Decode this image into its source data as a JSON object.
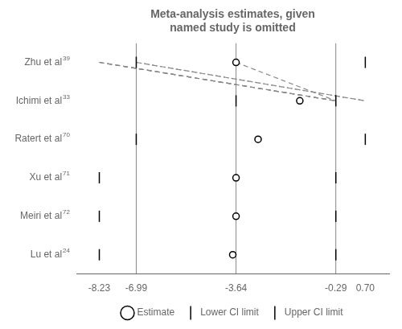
{
  "chart_data": {
    "type": "forest",
    "title": "Meta-analysis estimates, given\nnamed study is omitted",
    "categories": [
      "Zhu et al",
      "Ichimi et al",
      "Ratert et al",
      "Xu et al",
      "Meiri et al",
      "Lu et al"
    ],
    "superscripts": [
      "39",
      "33",
      "70",
      "71",
      "72",
      "24"
    ],
    "series": [
      {
        "name": "Lower CI limit",
        "color": "#000000",
        "marker": "line",
        "values": [
          -6.99,
          -3.64,
          -6.99,
          -8.23,
          -8.23,
          -8.23
        ]
      },
      {
        "name": "Estimate",
        "color": "#000000",
        "marker": "circle",
        "values": [
          -3.64,
          -1.5,
          -2.9,
          -3.64,
          -3.64,
          -3.75
        ]
      },
      {
        "name": "Upper CI limit",
        "color": "#000000",
        "marker": "line",
        "values": [
          0.7,
          -0.29,
          0.7,
          -0.29,
          -0.29,
          -0.29
        ]
      }
    ],
    "line_style": [
      "dotted",
      "dashed",
      "dashed",
      "dashed",
      "dashed",
      "dashed"
    ],
    "color": "#888888",
    "vlines": [
      -6.99,
      -3.64,
      -0.29
    ],
    "xlim": [
      -9.0,
      1.5
    ],
    "xticks": [
      -8.23,
      -6.99,
      -3.64,
      -0.29,
      {
        "value": 0.7,
        "label": "0.70"
      }
    ],
    "grid": false,
    "legend": "bottom"
  }
}
